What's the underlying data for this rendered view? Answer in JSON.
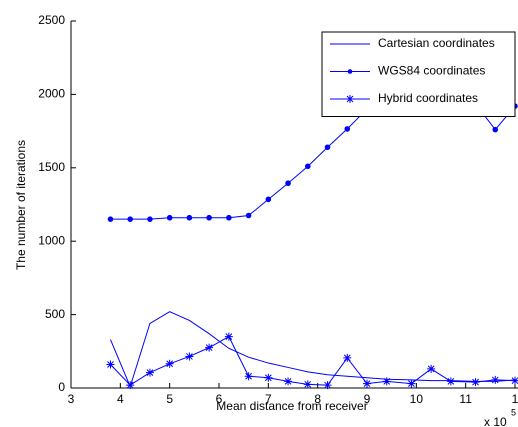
{
  "chart_data": {
    "type": "line",
    "xlabel": "Mean distance from receiver",
    "ylabel": "The number of iterations",
    "x_multiplier": "x 10",
    "x_exponent": "5",
    "x": [
      3.8,
      4.2,
      4.6,
      5.0,
      5.4,
      5.8,
      6.2,
      6.6,
      7.0,
      7.4,
      7.8,
      8.2,
      8.6,
      9.0,
      9.4,
      9.9,
      10.3,
      10.7,
      11.2,
      11.6,
      12.0
    ],
    "series": [
      {
        "name": "Cartesian coordinates",
        "color": "#0000ff",
        "marker": "none",
        "values": [
          330,
          10,
          440,
          520,
          460,
          370,
          270,
          210,
          170,
          140,
          110,
          90,
          80,
          70,
          60,
          55,
          50,
          50,
          45,
          45,
          55
        ]
      },
      {
        "name": "WGS84 coordinates",
        "color": "#0000ff",
        "marker": "dot",
        "values": [
          1150,
          1150,
          1150,
          1160,
          1160,
          1160,
          1160,
          1175,
          1285,
          1395,
          1510,
          1640,
          1765,
          1900,
          1915,
          1920,
          1935,
          2010,
          1935,
          1760,
          1920
        ]
      },
      {
        "name": "Hybrid coordinates",
        "color": "#0000ff",
        "marker": "star",
        "values": [
          160,
          20,
          105,
          165,
          215,
          275,
          350,
          80,
          70,
          45,
          25,
          20,
          205,
          30,
          45,
          30,
          130,
          45,
          40,
          55,
          50
        ]
      }
    ],
    "xlim": [
      3,
      12
    ],
    "ylim": [
      0,
      2500
    ],
    "xticks": [
      3,
      4,
      5,
      6,
      7,
      8,
      9,
      10,
      11,
      {
        "value": 12,
        "label": "1"
      }
    ],
    "yticks": [
      0,
      500,
      1000,
      1500,
      2000,
      2500
    ],
    "legend": "top-right"
  }
}
